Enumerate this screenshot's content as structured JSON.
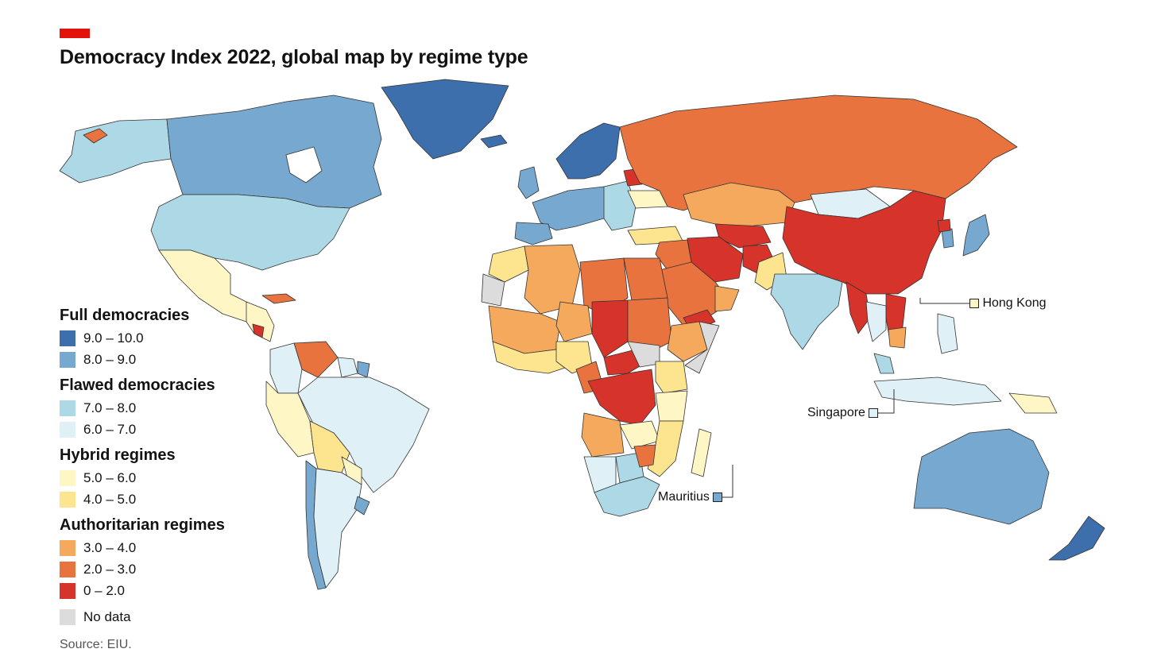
{
  "header": {
    "title": "Democracy Index 2022, global map by regime type",
    "accent_color": "#e3120b"
  },
  "legend": {
    "groups": [
      {
        "heading": "Full democracies",
        "items": [
          {
            "label": "9.0 – 10.0",
            "color": "#3e6fad"
          },
          {
            "label": "8.0 – 9.0",
            "color": "#77a9d0"
          }
        ]
      },
      {
        "heading": "Flawed democracies",
        "items": [
          {
            "label": "7.0 – 8.0",
            "color": "#add8e6"
          },
          {
            "label": "6.0 – 7.0",
            "color": "#dff0f6"
          }
        ]
      },
      {
        "heading": "Hybrid regimes",
        "items": [
          {
            "label": "5.0 – 6.0",
            "color": "#fff6c6"
          },
          {
            "label": "4.0 – 5.0",
            "color": "#fde48e"
          }
        ]
      },
      {
        "heading": "Authoritarian regimes",
        "items": [
          {
            "label": "3.0 – 4.0",
            "color": "#f4a95c"
          },
          {
            "label": "2.0 – 3.0",
            "color": "#e8733f"
          },
          {
            "label": "0 – 2.0",
            "color": "#d6332a"
          }
        ]
      }
    ],
    "no_data": {
      "label": "No data",
      "color": "#dcdcdc"
    }
  },
  "callouts": {
    "hong_kong": {
      "label": "Hong Kong",
      "color": "#fff6c6"
    },
    "singapore": {
      "label": "Singapore",
      "color": "#dff0f6"
    },
    "mauritius": {
      "label": "Mauritius",
      "color": "#77a9d0"
    }
  },
  "source": "Source: EIU."
}
